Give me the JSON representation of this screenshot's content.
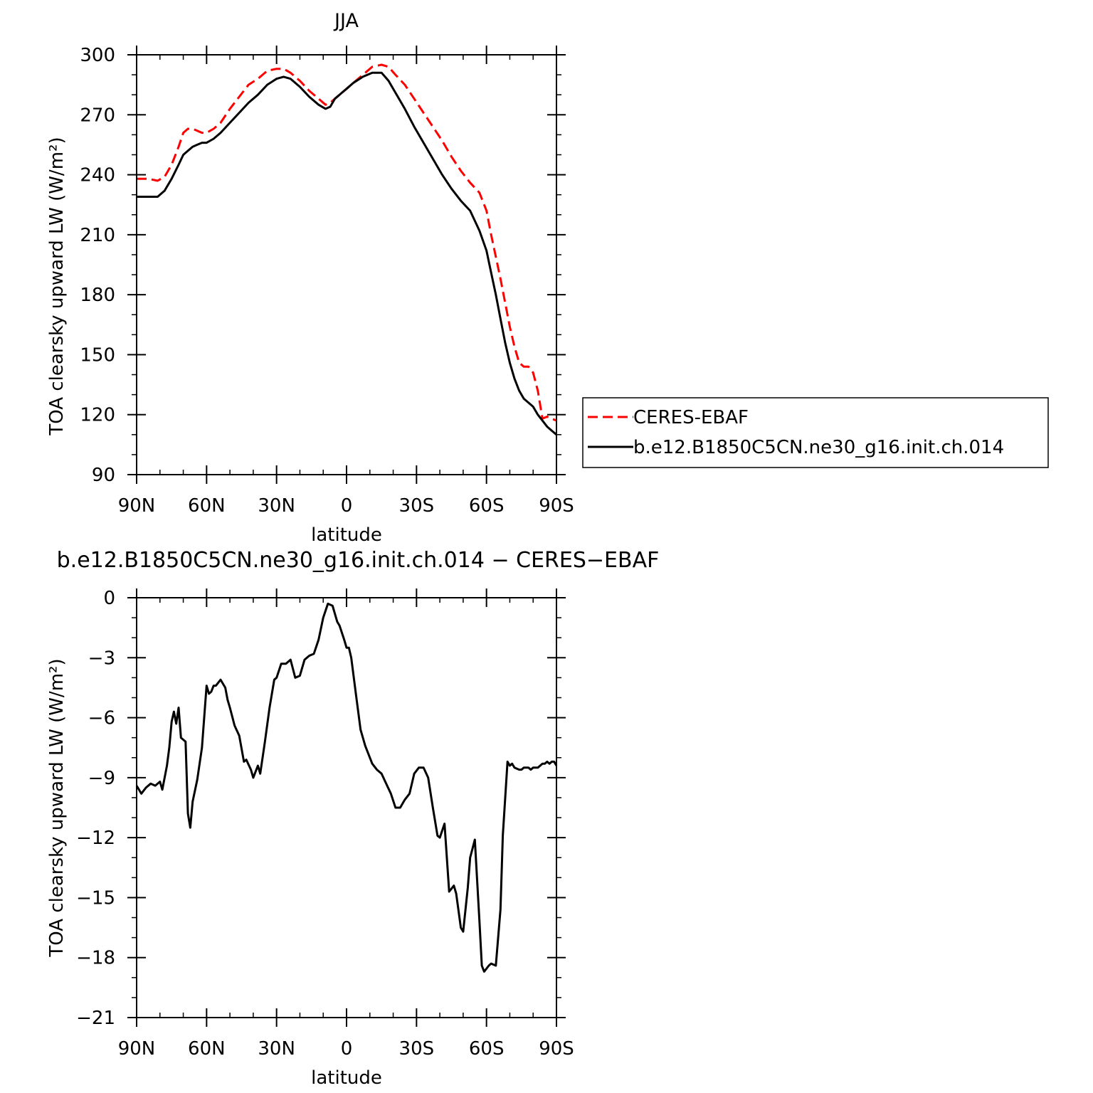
{
  "chart_data": [
    {
      "type": "line",
      "title": "JJA",
      "xlabel": "latitude",
      "ylabel": "TOA clearsky upward LW (W/m²)",
      "xlim": [
        90,
        -90
      ],
      "ylim": [
        90,
        300
      ],
      "yticks": [
        90,
        120,
        150,
        180,
        210,
        240,
        270,
        300
      ],
      "xticks": [
        {
          "value": 90,
          "label": "90N"
        },
        {
          "value": 60,
          "label": "60N"
        },
        {
          "value": 30,
          "label": "30N"
        },
        {
          "value": 0,
          "label": "0"
        },
        {
          "value": -30,
          "label": "30S"
        },
        {
          "value": -60,
          "label": "60S"
        },
        {
          "value": -90,
          "label": "90S"
        }
      ],
      "legend": "right",
      "series": [
        {
          "name": "CERES-EBAF",
          "color": "#ff0000",
          "dash": "dashed",
          "x": [
            90,
            85,
            81,
            78,
            75,
            72,
            70,
            68,
            66,
            64,
            62,
            60,
            57,
            54,
            50,
            46,
            42,
            38,
            34,
            30,
            27,
            24,
            20,
            16,
            12,
            9,
            7,
            5,
            2,
            0,
            -3,
            -7,
            -11,
            -15,
            -18,
            -21,
            -25,
            -29,
            -33,
            -37,
            -41,
            -45,
            -49,
            -53,
            -57,
            -60,
            -62,
            -64,
            -66,
            -68,
            -70,
            -72,
            -74,
            -76,
            -78,
            -80,
            -82,
            -84,
            -86,
            -88,
            -90
          ],
          "y": [
            238,
            238,
            237,
            239,
            245,
            254,
            261,
            263,
            263,
            262,
            261,
            261,
            263,
            266,
            273,
            279,
            285,
            288,
            292,
            293,
            293,
            291,
            287,
            282,
            278,
            275,
            276,
            278,
            281,
            283,
            286,
            290,
            294,
            295,
            294,
            290,
            285,
            278,
            271,
            264,
            257,
            249,
            242,
            236,
            231,
            222,
            210,
            199,
            188,
            176,
            164,
            154,
            146,
            144,
            144,
            141,
            132,
            118,
            119,
            118,
            117
          ]
        },
        {
          "name": "b.e12.B1850C5CN.ne30_g16.init.ch.014",
          "color": "#000000",
          "dash": "solid",
          "x": [
            90,
            85,
            81,
            78,
            75,
            72,
            70,
            68,
            66,
            64,
            62,
            60,
            57,
            54,
            50,
            46,
            42,
            38,
            34,
            30,
            27,
            24,
            20,
            16,
            12,
            9,
            7,
            5,
            2,
            0,
            -3,
            -7,
            -11,
            -15,
            -18,
            -21,
            -25,
            -29,
            -33,
            -37,
            -41,
            -45,
            -49,
            -53,
            -57,
            -60,
            -62,
            -64,
            -66,
            -68,
            -70,
            -72,
            -74,
            -76,
            -78,
            -80,
            -82,
            -84,
            -86,
            -88,
            -90
          ],
          "y": [
            229,
            229,
            229,
            232,
            238,
            245,
            250,
            252,
            254,
            255,
            256,
            256,
            258,
            261,
            266,
            271,
            276,
            280,
            285,
            288,
            289,
            288,
            284,
            279,
            275,
            273,
            274,
            278,
            281,
            283,
            286,
            289,
            291,
            291,
            287,
            281,
            273,
            264,
            256,
            248,
            240,
            233,
            227,
            222,
            212,
            202,
            191,
            180,
            168,
            156,
            146,
            138,
            132,
            128,
            126,
            124,
            120,
            117,
            114,
            112,
            110
          ]
        }
      ]
    },
    {
      "type": "line",
      "title": "b.e12.B1850C5CN.ne30_g16.init.ch.014 − CERES−EBAF",
      "xlabel": "latitude",
      "ylabel": "TOA clearsky upward LW (W/m²)",
      "xlim": [
        90,
        -90
      ],
      "ylim": [
        -21,
        0
      ],
      "yticks": [
        -21,
        -18,
        -15,
        -12,
        -9,
        -6,
        -3,
        0
      ],
      "xticks": [
        {
          "value": 90,
          "label": "90N"
        },
        {
          "value": 60,
          "label": "60N"
        },
        {
          "value": 30,
          "label": "30N"
        },
        {
          "value": 0,
          "label": "0"
        },
        {
          "value": -30,
          "label": "30S"
        },
        {
          "value": -60,
          "label": "60S"
        },
        {
          "value": -90,
          "label": "90S"
        }
      ],
      "series": [
        {
          "color": "#000000",
          "dash": "solid",
          "x": [
            90,
            88,
            86,
            84,
            82,
            80,
            79,
            77,
            76,
            75,
            74,
            73,
            72,
            71,
            69,
            68,
            67,
            66,
            64,
            62,
            60,
            59,
            58,
            57,
            56,
            54,
            52,
            51,
            50,
            48,
            46,
            44,
            43,
            41,
            40,
            38,
            37,
            36,
            35,
            33,
            31,
            30,
            28,
            26,
            24,
            22,
            20,
            18,
            16,
            14,
            12,
            10,
            8,
            6,
            4,
            3,
            1,
            0,
            -1,
            -2,
            -4,
            -6,
            -8,
            -10,
            -11,
            -13,
            -15,
            -17,
            -19,
            -21,
            -23,
            -25,
            -27,
            -29,
            -31,
            -33,
            -35,
            -37,
            -39,
            -40,
            -42,
            -44,
            -46,
            -47,
            -49,
            -50,
            -52,
            -53,
            -55,
            -57,
            -58,
            -59,
            -61,
            -62,
            -64,
            -66,
            -67,
            -69,
            -70,
            -71,
            -72,
            -74,
            -75,
            -76,
            -78,
            -79,
            -80,
            -82,
            -83,
            -84,
            -85,
            -86,
            -87,
            -88,
            -89,
            -90
          ],
          "y": [
            -9.4,
            -9.8,
            -9.5,
            -9.3,
            -9.4,
            -9.2,
            -9.6,
            -8.4,
            -7.5,
            -6.2,
            -5.7,
            -6.3,
            -5.5,
            -7.0,
            -7.2,
            -10.8,
            -11.5,
            -10.2,
            -9.1,
            -7.5,
            -4.4,
            -4.8,
            -4.7,
            -4.4,
            -4.4,
            -4.1,
            -4.5,
            -5.1,
            -5.5,
            -6.4,
            -6.9,
            -8.2,
            -8.1,
            -8.6,
            -9.0,
            -8.4,
            -8.8,
            -8.0,
            -7.2,
            -5.5,
            -4.1,
            -4.0,
            -3.3,
            -3.3,
            -3.1,
            -4.0,
            -3.9,
            -3.1,
            -2.9,
            -2.8,
            -2.1,
            -1.0,
            -0.3,
            -0.4,
            -1.2,
            -1.4,
            -2.1,
            -2.5,
            -2.5,
            -3.0,
            -4.8,
            -6.6,
            -7.4,
            -8.0,
            -8.3,
            -8.6,
            -8.8,
            -9.3,
            -9.8,
            -10.5,
            -10.5,
            -10.1,
            -9.8,
            -8.8,
            -8.5,
            -8.5,
            -9.0,
            -10.5,
            -11.9,
            -12.0,
            -11.3,
            -14.7,
            -14.4,
            -14.8,
            -16.5,
            -16.7,
            -14.5,
            -13.0,
            -12.1,
            -16.2,
            -18.4,
            -18.7,
            -18.4,
            -18.3,
            -18.4,
            -15.6,
            -11.9,
            -8.2,
            -8.4,
            -8.3,
            -8.5,
            -8.6,
            -8.6,
            -8.5,
            -8.5,
            -8.6,
            -8.5,
            -8.5,
            -8.4,
            -8.3,
            -8.3,
            -8.2,
            -8.3,
            -8.2,
            -8.2,
            -8.4
          ]
        }
      ]
    }
  ]
}
